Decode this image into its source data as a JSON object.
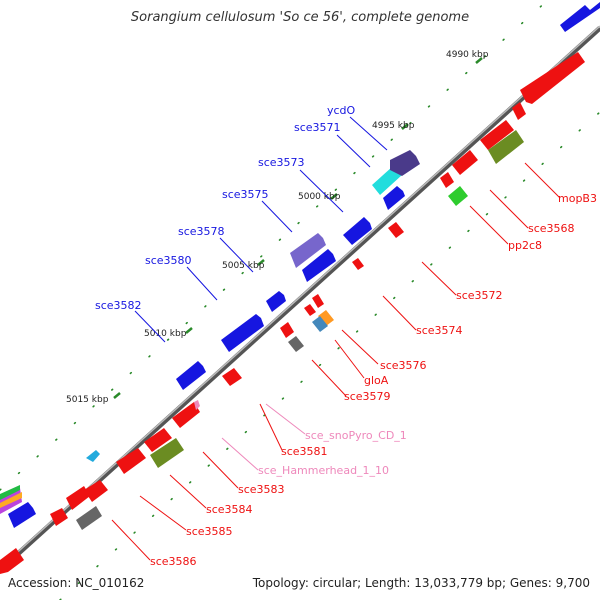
{
  "header": {
    "title": "Sorangium cellulosum 'So ce 56', complete genome"
  },
  "footer": {
    "accession": "Accession: NC_010162",
    "topology": "Topology: circular; Length: 13,033,779 bp; Genes: 9,700"
  },
  "ticks": [
    "4990 kbp",
    "4995 kbp",
    "5000 kbp",
    "5005 kbp",
    "5010 kbp",
    "5015 kbp"
  ],
  "colors": {
    "forward": "#1616e0",
    "reverse": "#ee1111",
    "backbone": "#777777",
    "olive": "#6b8c22",
    "green": "#2ecc2e",
    "cyan": "#22dddd",
    "slate": "#4a3a8a",
    "violet": "#7766cc",
    "grey": "#666666",
    "orange": "#ff9922",
    "steel": "#4488bb",
    "pink": "#ee88bb",
    "dots": "#2a8a2a"
  },
  "labels_forward": [
    "ycdO",
    "sce3571",
    "sce3573",
    "sce3575",
    "sce3578",
    "sce3580",
    "sce3582"
  ],
  "labels_reverse": [
    "mopB3",
    "sce3568",
    "pp2c8",
    "sce3572",
    "sce3574",
    "sce3576",
    "gloA",
    "sce3579",
    "sce3581",
    "sce3583",
    "sce3584",
    "sce3585",
    "sce3586"
  ],
  "labels_rna": [
    "sce_snoPyro_CD_1",
    "sce_Hammerhead_1_10"
  ]
}
